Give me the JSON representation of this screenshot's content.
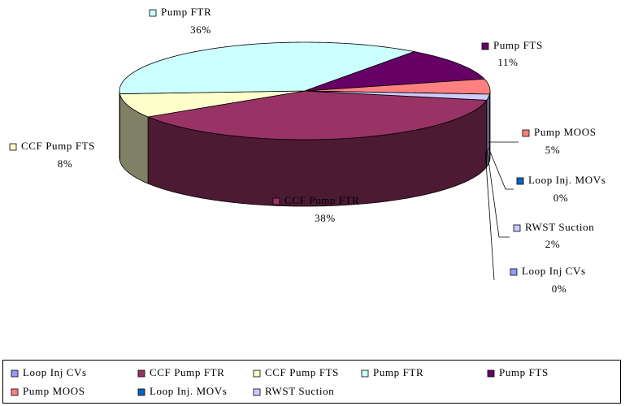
{
  "chart_data": {
    "type": "pie",
    "categories": [
      "Loop Inj CVs",
      "CCF Pump FTR",
      "CCF Pump FTS",
      "Pump FTR",
      "Pump FTS",
      "Pump MOOS",
      "Loop Inj. MOVs",
      "RWST Suction"
    ],
    "values": [
      0,
      38,
      8,
      36,
      11,
      5,
      0,
      2
    ],
    "value_labels": [
      "0%",
      "38%",
      "8%",
      "36%",
      "11%",
      "5%",
      "0%",
      "2%"
    ],
    "colors": [
      "#9999ff",
      "#993366",
      "#ffffcc",
      "#ccffff",
      "#660066",
      "#ff8080",
      "#0066cc",
      "#ccccff"
    ],
    "legend": "bottom"
  }
}
